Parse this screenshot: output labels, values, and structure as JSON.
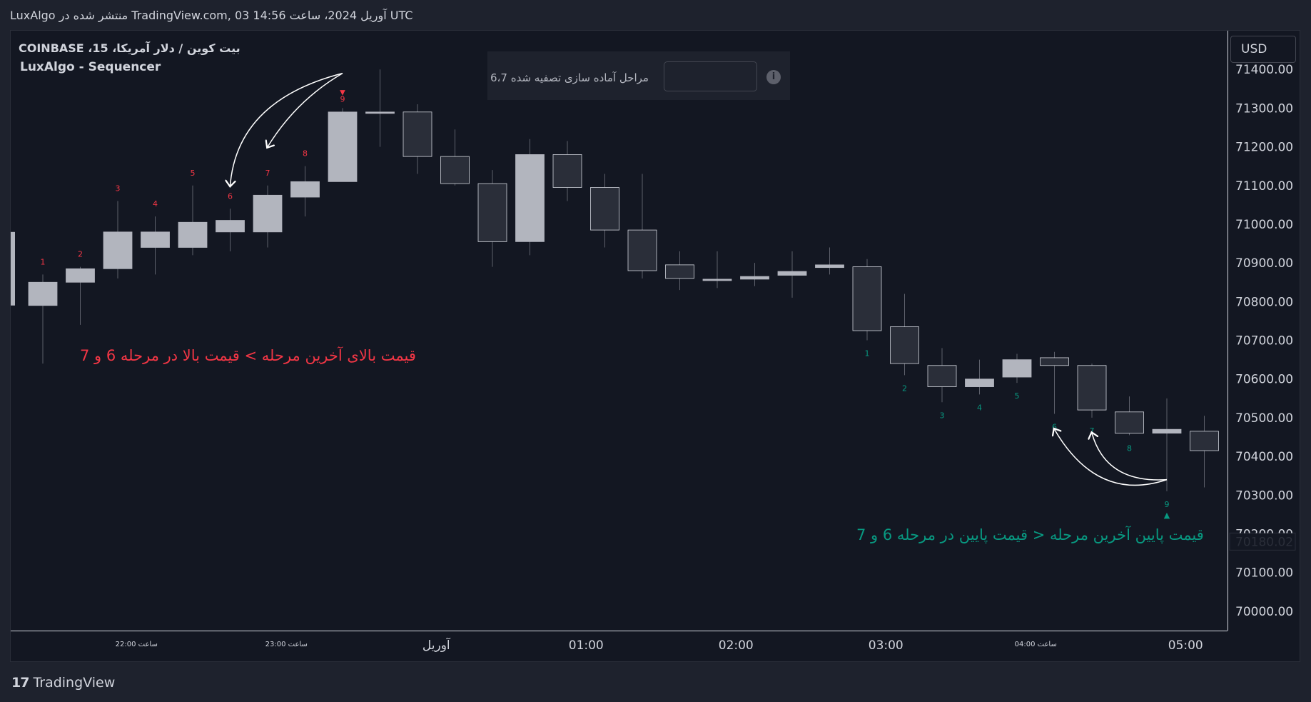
{
  "header": {
    "published": "LuxAlgo منتشر شده در TradingView.com, 03 آوریل 2024، ساعت 14:56 UTC"
  },
  "legend": {
    "symbol": "بیت کوین / دلار آمریکا، 15، COINBASE",
    "indicator": "LuxAlgo - Sequencer"
  },
  "settings_panel": {
    "label": "مراحل آماده سازی تصفیه شده 6،7",
    "info_icon": "info-icon",
    "info_glyph": "i"
  },
  "currency": "USD",
  "annotations": {
    "bearish": "قیمت بالای آخرین مرحله > قیمت بالا در مرحله 6 و 7",
    "bullish": "قیمت پایین آخرین مرحله < قیمت پایین در مرحله 6 و 7"
  },
  "footer": {
    "logo_glyph": "17",
    "brand": "TradingView"
  },
  "colors": {
    "background": "#131722",
    "up_candle": "#b2b5be",
    "down_candle": "#2a2e39",
    "bearish_label": "#f23645",
    "bullish_label": "#089981"
  },
  "chart_data": {
    "type": "candlestick",
    "ylim": [
      69950,
      71500
    ],
    "yticks": [
      71400,
      71300,
      71200,
      71100,
      71000,
      70900,
      70800,
      70700,
      70600,
      70500,
      70400,
      70300,
      70200,
      70100,
      70000
    ],
    "ytick_labels": [
      "71400.00",
      "71300.00",
      "71200.00",
      "71100.00",
      "71000.00",
      "70900.00",
      "70800.00",
      "70700.00",
      "70600.00",
      "70500.00",
      "70400.00",
      "70300.00",
      "70200.00",
      "70100.00",
      "70000.00"
    ],
    "last_price": "70180.02",
    "xticks": [
      {
        "label": "ساعت 22:00",
        "bar": 2.5,
        "small": true
      },
      {
        "label": "ساعت 23:00",
        "bar": 6.5,
        "small": true
      },
      {
        "label": "آوریل",
        "bar": 10.5,
        "small": false
      },
      {
        "label": "01:00",
        "bar": 14.5,
        "small": false
      },
      {
        "label": "02:00",
        "bar": 18.5,
        "small": false
      },
      {
        "label": "03:00",
        "bar": 22.5,
        "small": false
      },
      {
        "label": "ساعت 04:00",
        "bar": 26.5,
        "small": true
      },
      {
        "label": "05:00",
        "bar": 30.5,
        "small": false
      }
    ],
    "candles": [
      {
        "o": 70790,
        "h": 70870,
        "l": 70640,
        "c": 70850
      },
      {
        "o": 70850,
        "h": 70890,
        "l": 70740,
        "c": 70885
      },
      {
        "o": 70885,
        "h": 71060,
        "l": 70860,
        "c": 70980
      },
      {
        "o": 70940,
        "h": 71020,
        "l": 70870,
        "c": 70980
      },
      {
        "o": 70940,
        "h": 71100,
        "l": 70920,
        "c": 71005
      },
      {
        "o": 70980,
        "h": 71040,
        "l": 70930,
        "c": 71010
      },
      {
        "o": 70980,
        "h": 71100,
        "l": 70940,
        "c": 71075
      },
      {
        "o": 71070,
        "h": 71150,
        "l": 71020,
        "c": 71110
      },
      {
        "o": 71110,
        "h": 71300,
        "l": 71110,
        "c": 71290
      },
      {
        "o": 71290,
        "h": 71400,
        "l": 71200,
        "c": 71290
      },
      {
        "o": 71290,
        "h": 71310,
        "l": 71130,
        "c": 71175
      },
      {
        "o": 71175,
        "h": 71245,
        "l": 71100,
        "c": 71105
      },
      {
        "o": 71105,
        "h": 71140,
        "l": 70890,
        "c": 70955
      },
      {
        "o": 70955,
        "h": 71220,
        "l": 70920,
        "c": 71180
      },
      {
        "o": 71180,
        "h": 71215,
        "l": 71060,
        "c": 71095
      },
      {
        "o": 71095,
        "h": 71130,
        "l": 70940,
        "c": 70985
      },
      {
        "o": 70985,
        "h": 71130,
        "l": 70860,
        "c": 70880
      },
      {
        "o": 70895,
        "h": 70930,
        "l": 70830,
        "c": 70860
      },
      {
        "o": 70858,
        "h": 70930,
        "l": 70835,
        "c": 70858
      },
      {
        "o": 70858,
        "h": 70900,
        "l": 70840,
        "c": 70865
      },
      {
        "o": 70868,
        "h": 70930,
        "l": 70810,
        "c": 70878
      },
      {
        "o": 70888,
        "h": 70940,
        "l": 70870,
        "c": 70895
      },
      {
        "o": 70890,
        "h": 70910,
        "l": 70700,
        "c": 70725
      },
      {
        "o": 70735,
        "h": 70820,
        "l": 70610,
        "c": 70640
      },
      {
        "o": 70635,
        "h": 70680,
        "l": 70540,
        "c": 70580
      },
      {
        "o": 70580,
        "h": 70650,
        "l": 70560,
        "c": 70600
      },
      {
        "o": 70605,
        "h": 70665,
        "l": 70590,
        "c": 70650
      },
      {
        "o": 70655,
        "h": 70670,
        "l": 70510,
        "c": 70635
      },
      {
        "o": 70635,
        "h": 70640,
        "l": 70500,
        "c": 70520
      },
      {
        "o": 70515,
        "h": 70555,
        "l": 70455,
        "c": 70460
      },
      {
        "o": 70460,
        "h": 70550,
        "l": 70310,
        "c": 70470
      },
      {
        "o": 70465,
        "h": 70505,
        "l": 70320,
        "c": 70415
      }
    ],
    "bearish_sequence": [
      {
        "bar": 0,
        "label": "1"
      },
      {
        "bar": 1,
        "label": "2"
      },
      {
        "bar": 2,
        "label": "3"
      },
      {
        "bar": 3,
        "label": "4"
      },
      {
        "bar": 4,
        "label": "5"
      },
      {
        "bar": 5,
        "label": "6"
      },
      {
        "bar": 6,
        "label": "7"
      },
      {
        "bar": 7,
        "label": "8"
      },
      {
        "bar": 8,
        "label": "9"
      }
    ],
    "bullish_sequence": [
      {
        "bar": 22,
        "label": "1"
      },
      {
        "bar": 23,
        "label": "2"
      },
      {
        "bar": 24,
        "label": "3"
      },
      {
        "bar": 25,
        "label": "4"
      },
      {
        "bar": 26,
        "label": "5"
      },
      {
        "bar": 27,
        "label": "6"
      },
      {
        "bar": 28,
        "label": "7"
      },
      {
        "bar": 29,
        "label": "8"
      },
      {
        "bar": 30,
        "label": "9"
      }
    ]
  }
}
